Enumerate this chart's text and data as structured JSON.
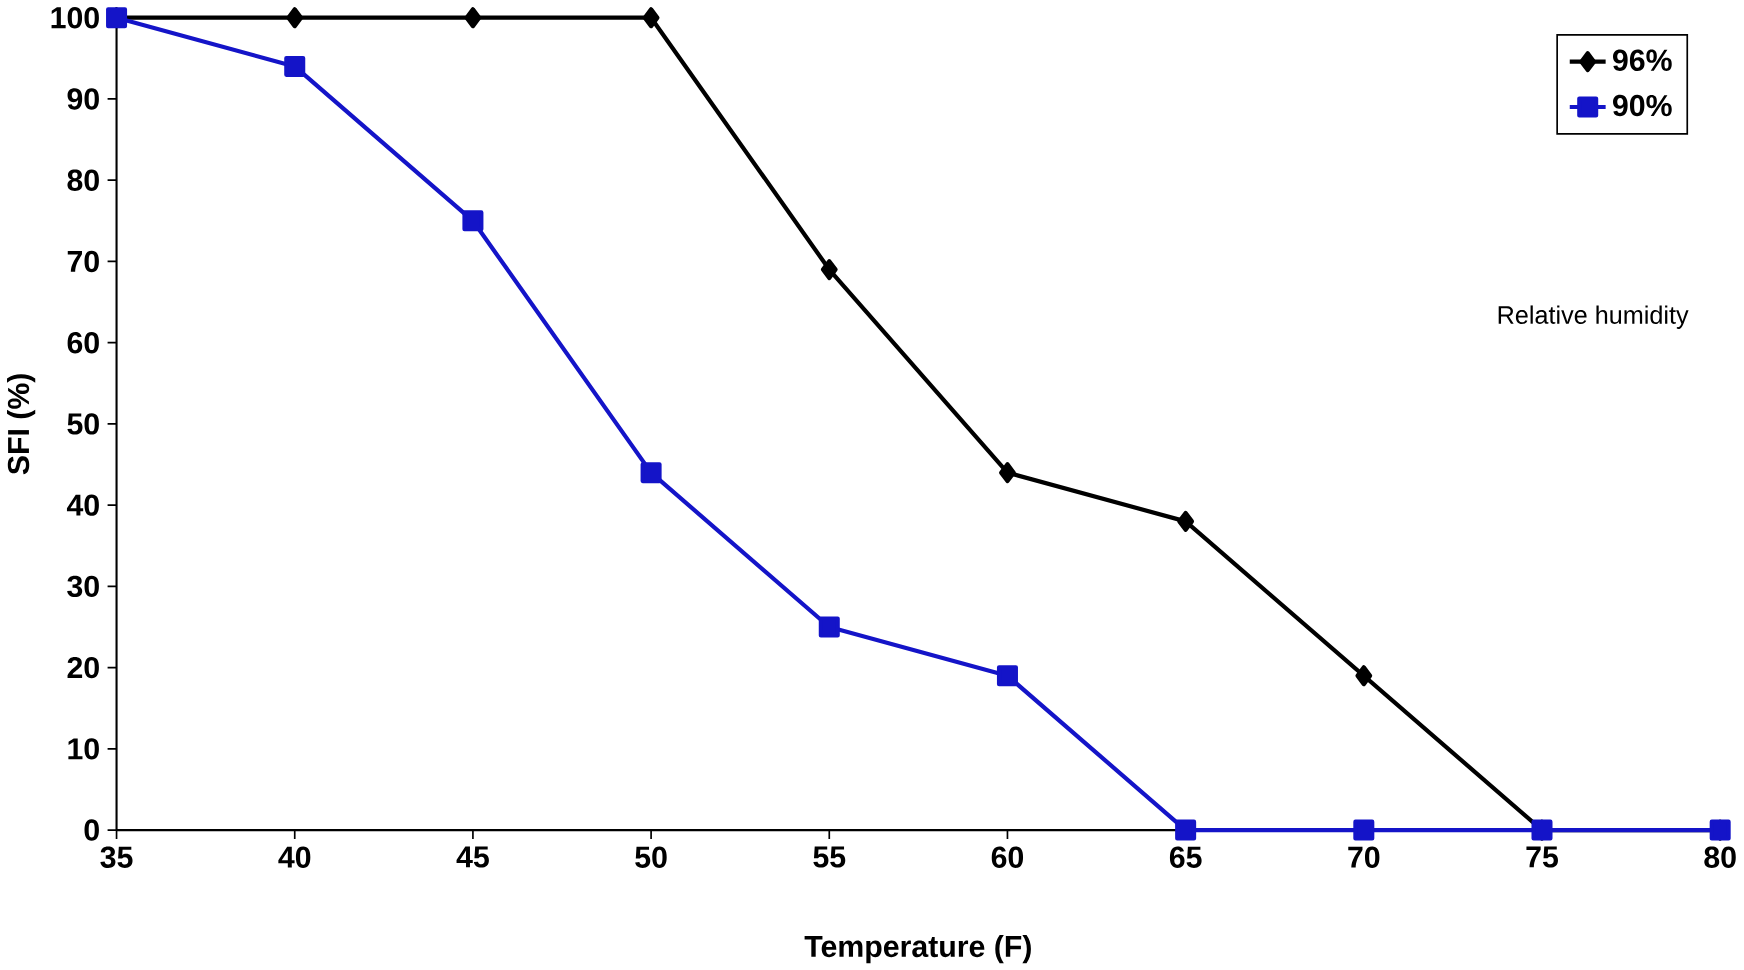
{
  "chart_data": {
    "type": "line",
    "xlabel": "Temperature (F)",
    "ylabel": "SFI (%)",
    "x": [
      35,
      40,
      45,
      50,
      55,
      60,
      65,
      70,
      75,
      80
    ],
    "series": [
      {
        "name": "96%",
        "color": "#000000",
        "marker": "diamond",
        "values": [
          100,
          100,
          100,
          100,
          69,
          44,
          38,
          19,
          0,
          0
        ]
      },
      {
        "name": "90%",
        "color": "#1414c8",
        "marker": "square",
        "values": [
          100,
          94,
          75,
          44,
          25,
          19,
          0,
          0,
          0,
          0
        ]
      }
    ],
    "xlim": [
      35,
      80
    ],
    "xticks": [
      35,
      40,
      45,
      50,
      55,
      60,
      65,
      70,
      75,
      80
    ],
    "ylim": [
      0,
      100
    ],
    "yticks": [
      0,
      10,
      20,
      30,
      40,
      50,
      60,
      70,
      80,
      90,
      100
    ],
    "legend": "top right",
    "grid": false,
    "line_style": "solid",
    "annotations": [
      "Relative humidity"
    ]
  }
}
